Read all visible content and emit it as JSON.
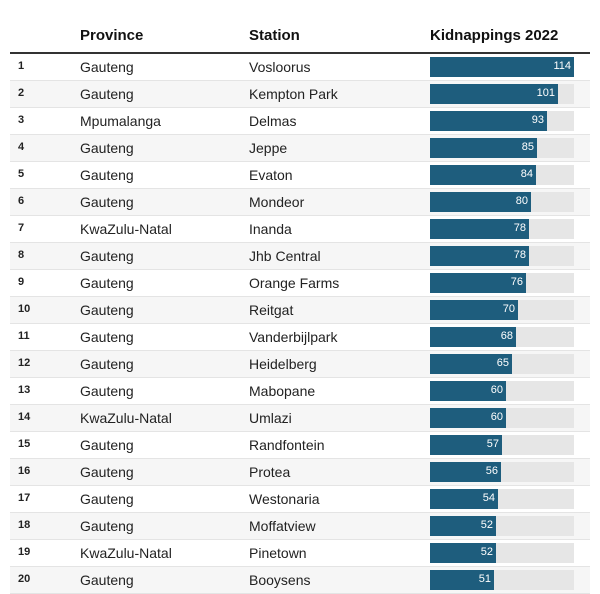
{
  "headers": {
    "province": "Province",
    "station": "Station",
    "value": "Kidnappings 2022"
  },
  "colors": {
    "bar": "#1e5d7d",
    "track": "#e6e6e6",
    "row_alt": "#f6f6f6"
  },
  "chart_data": {
    "type": "bar",
    "orientation": "horizontal",
    "xlim": [
      0,
      114
    ],
    "rows": [
      {
        "rank": "1",
        "province": "Gauteng",
        "station": "Vosloorus",
        "value": 114
      },
      {
        "rank": "2",
        "province": "Gauteng",
        "station": "Kempton Park",
        "value": 101
      },
      {
        "rank": "3",
        "province": "Mpumalanga",
        "station": "Delmas",
        "value": 93
      },
      {
        "rank": "4",
        "province": "Gauteng",
        "station": "Jeppe",
        "value": 85
      },
      {
        "rank": "5",
        "province": "Gauteng",
        "station": "Evaton",
        "value": 84
      },
      {
        "rank": "6",
        "province": "Gauteng",
        "station": "Mondeor",
        "value": 80
      },
      {
        "rank": "7",
        "province": "KwaZulu-Natal",
        "station": "Inanda",
        "value": 78
      },
      {
        "rank": "8",
        "province": "Gauteng",
        "station": "Jhb Central",
        "value": 78
      },
      {
        "rank": "9",
        "province": "Gauteng",
        "station": "Orange Farms",
        "value": 76
      },
      {
        "rank": "10",
        "province": "Gauteng",
        "station": "Reitgat",
        "value": 70
      },
      {
        "rank": "11",
        "province": "Gauteng",
        "station": "Vanderbijlpark",
        "value": 68
      },
      {
        "rank": "12",
        "province": "Gauteng",
        "station": "Heidelberg",
        "value": 65
      },
      {
        "rank": "13",
        "province": "Gauteng",
        "station": "Mabopane",
        "value": 60
      },
      {
        "rank": "14",
        "province": "KwaZulu-Natal",
        "station": "Umlazi",
        "value": 60
      },
      {
        "rank": "15",
        "province": "Gauteng",
        "station": "Randfontein",
        "value": 57
      },
      {
        "rank": "16",
        "province": "Gauteng",
        "station": "Protea",
        "value": 56
      },
      {
        "rank": "17",
        "province": "Gauteng",
        "station": "Westonaria",
        "value": 54
      },
      {
        "rank": "18",
        "province": "Gauteng",
        "station": "Moffatview",
        "value": 52
      },
      {
        "rank": "19",
        "province": "KwaZulu-Natal",
        "station": "Pinetown",
        "value": 52
      },
      {
        "rank": "20",
        "province": "Gauteng",
        "station": "Booysens",
        "value": 51
      }
    ]
  }
}
